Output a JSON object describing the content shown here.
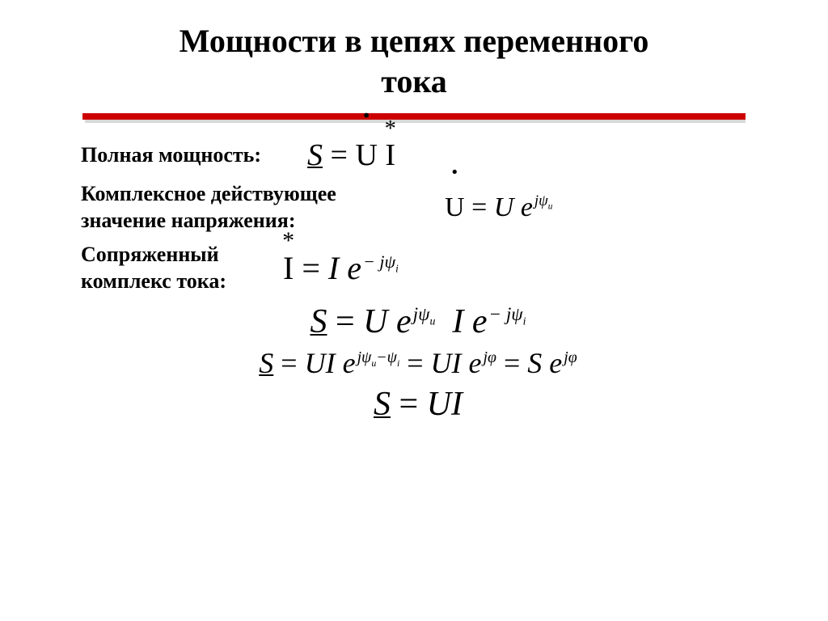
{
  "title_line1": "Мощности в цепях переменного",
  "title_line2": "тока",
  "label_full_power": "Полная мощность:",
  "label_voltage_l1": "Комплексное действующее",
  "label_voltage_l2": "значение напряжения:",
  "label_current_l1": "Сопряженный",
  "label_current_l2": "комплекс  тока:",
  "sym_S": "S",
  "sym_U_roman": "U",
  "sym_I_roman": "I",
  "sym_U": "U",
  "sym_I": "I",
  "sym_e": "e",
  "sym_eq": " = ",
  "exp_jpsi_u": "jψ",
  "exp_mjpsi_i": "− jψ",
  "exp_diff": "jψ",
  "exp_diff_mid": "−ψ",
  "exp_jphi": "jφ",
  "sub_u": "u",
  "sub_i": "i",
  "colors": {
    "rule": "#cc0000",
    "text": "#000000",
    "bg": "#ffffff"
  },
  "fonts": {
    "title_pt": 40,
    "label_pt": 26,
    "eq_main_pt": 36,
    "eq_big_pt": 42
  }
}
